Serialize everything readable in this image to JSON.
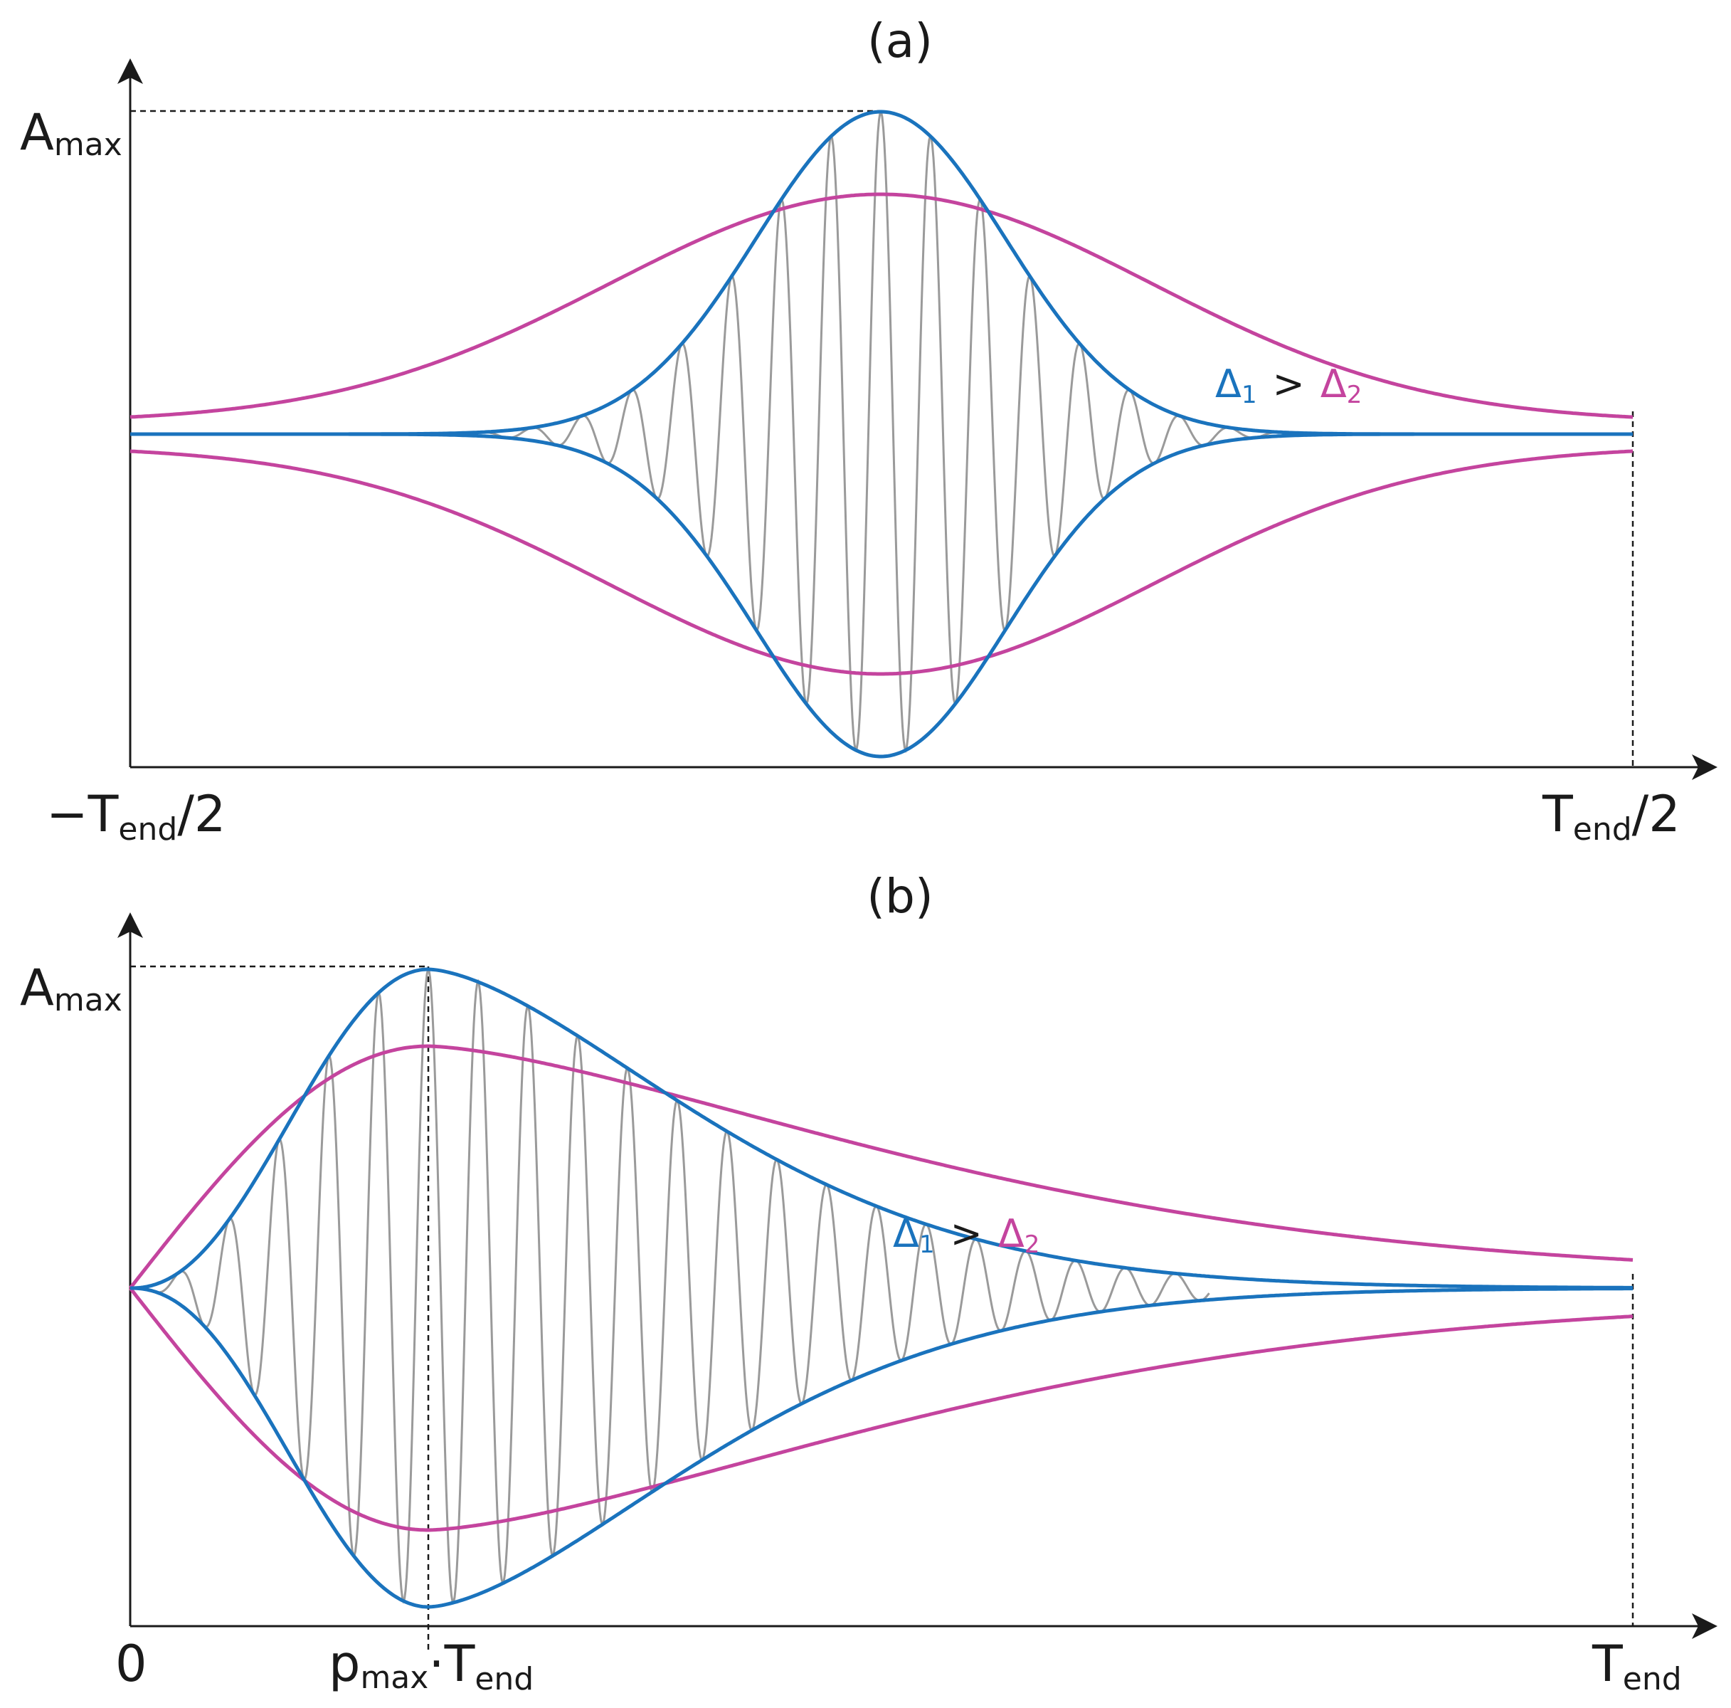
{
  "panel_a": {
    "title": "(a)",
    "y_label_main": "A",
    "y_label_sub": "max",
    "x_left_prefix": "−T",
    "x_left_sub": "end",
    "x_left_suffix": "/2",
    "x_right_prefix": "T",
    "x_right_sub": "end",
    "x_right_suffix": "/2",
    "annotation": {
      "d1_symbol": "Δ",
      "d1_sub": "1",
      "relation": ">",
      "d2_symbol": "Δ",
      "d2_sub": "2"
    }
  },
  "panel_b": {
    "title": "(b)",
    "y_label_main": "A",
    "y_label_sub": "max",
    "x_origin": "0",
    "x_peak_p": "p",
    "x_peak_p_sub": "max",
    "x_peak_dot": "·T",
    "x_peak_sub": "end",
    "x_right_prefix": "T",
    "x_right_sub": "end",
    "annotation": {
      "d1_symbol": "Δ",
      "d1_sub": "1",
      "relation": ">",
      "d2_symbol": "Δ",
      "d2_sub": "2"
    }
  },
  "colors": {
    "delta1": "#1a73bd",
    "delta2": "#c4449e",
    "carrier": "#9a9a9a",
    "axis": "#1a1a1a"
  }
}
